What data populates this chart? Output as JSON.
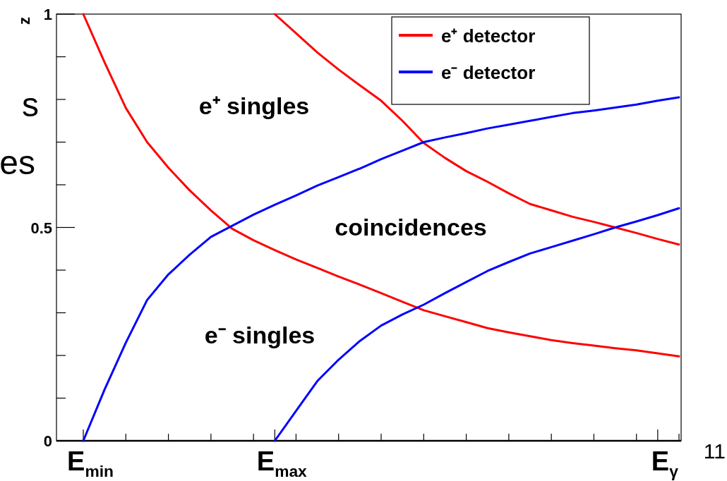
{
  "chart_data": {
    "type": "line",
    "ylabel": "z",
    "categories": [
      "E$_{min}$",
      null,
      null,
      null,
      null,
      null,
      null,
      null,
      null,
      "E$_{max}$",
      null,
      null,
      null,
      null,
      null,
      null,
      null,
      null,
      null,
      null,
      null,
      null,
      null,
      null,
      null,
      null,
      null,
      "E$_{γ}$",
      null
    ],
    "series": [
      {
        "name": "e⁺ detector",
        "color": "#ff0000",
        "values": [
          1.0,
          0.887,
          0.78,
          0.7,
          0.64,
          0.587,
          0.54,
          0.497,
          0.47,
          0.447,
          0.425,
          0.405,
          0.385,
          0.366,
          0.346,
          0.326,
          0.306,
          0.292,
          0.278,
          0.264,
          0.254,
          0.245,
          0.236,
          0.229,
          0.223,
          0.217,
          0.212,
          0.205,
          0.198
        ]
      },
      {
        "color": "#ff0000",
        "values": [
          null,
          null,
          null,
          null,
          null,
          null,
          null,
          null,
          null,
          1.0,
          0.955,
          0.91,
          0.87,
          0.833,
          0.797,
          0.75,
          0.698,
          0.663,
          0.632,
          0.607,
          0.58,
          0.555,
          0.54,
          0.525,
          0.513,
          0.5,
          0.487,
          0.473,
          0.46
        ]
      },
      {
        "name": "e⁻ detector",
        "color": "#0000ff",
        "values": [
          0,
          0.12,
          0.23,
          0.33,
          0.39,
          0.436,
          0.478,
          0.504,
          0.53,
          0.553,
          0.575,
          0.598,
          0.618,
          0.638,
          0.66,
          0.68,
          0.7,
          0.711,
          0.721,
          0.732,
          0.741,
          0.75,
          0.759,
          0.768,
          0.774,
          0.781,
          0.788,
          0.797,
          0.805
        ]
      },
      {
        "color": "#0000ff",
        "values": [
          null,
          null,
          null,
          null,
          null,
          null,
          null,
          null,
          null,
          0,
          0.07,
          0.14,
          0.19,
          0.234,
          0.27,
          0.296,
          0.319,
          0.346,
          0.372,
          0.398,
          0.419,
          0.439,
          0.454,
          0.469,
          0.484,
          0.5,
          0.514,
          0.529,
          0.545
        ]
      }
    ],
    "ylim": [
      0,
      1
    ],
    "yticks": [
      0,
      0.5,
      1
    ],
    "annotations": [
      "e⁺ singles",
      "coincidences",
      "e⁻ singles",
      "s",
      "es",
      "11"
    ],
    "legend": "top right",
    "grid": false,
    "marker": "none",
    "line_style": "solid"
  }
}
